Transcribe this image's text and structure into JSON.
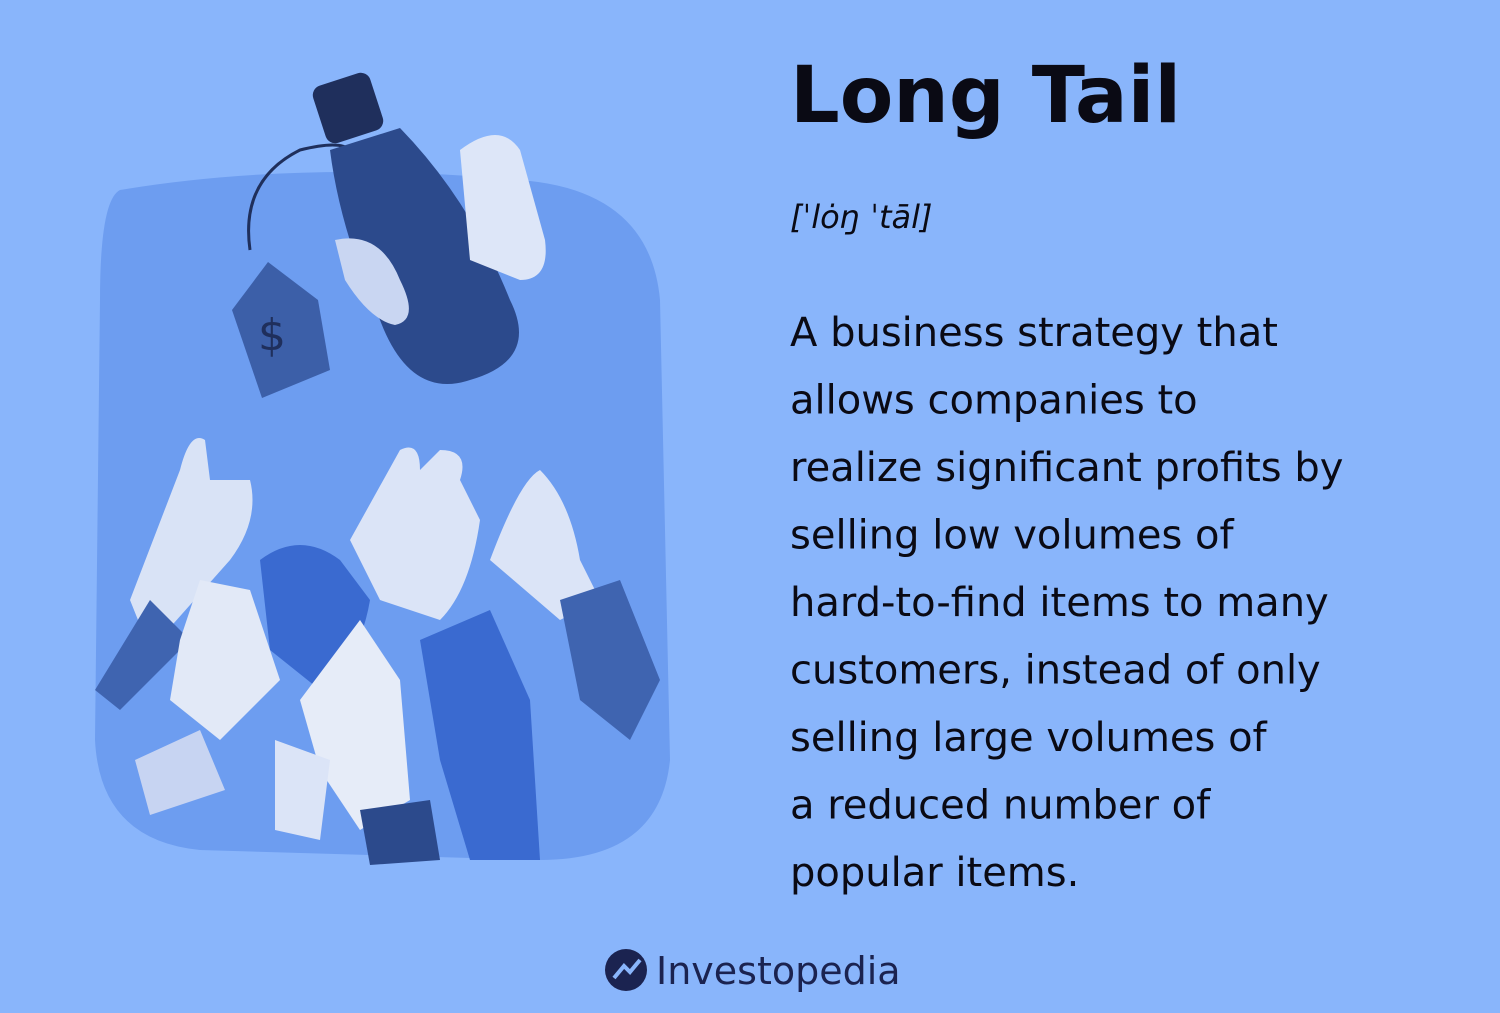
{
  "title": "Long Tail",
  "pronunciation": "[ˈlȯŋ ˈtāl]",
  "definition_lines": [
    "A business strategy that",
    "allows companies to",
    "realize significant profits by",
    "selling low volumes of",
    "hard-to-find items to many",
    "customers, instead of only",
    "selling large volumes of",
    "a reduced number of",
    "popular items."
  ],
  "brand": "Investopedia"
}
